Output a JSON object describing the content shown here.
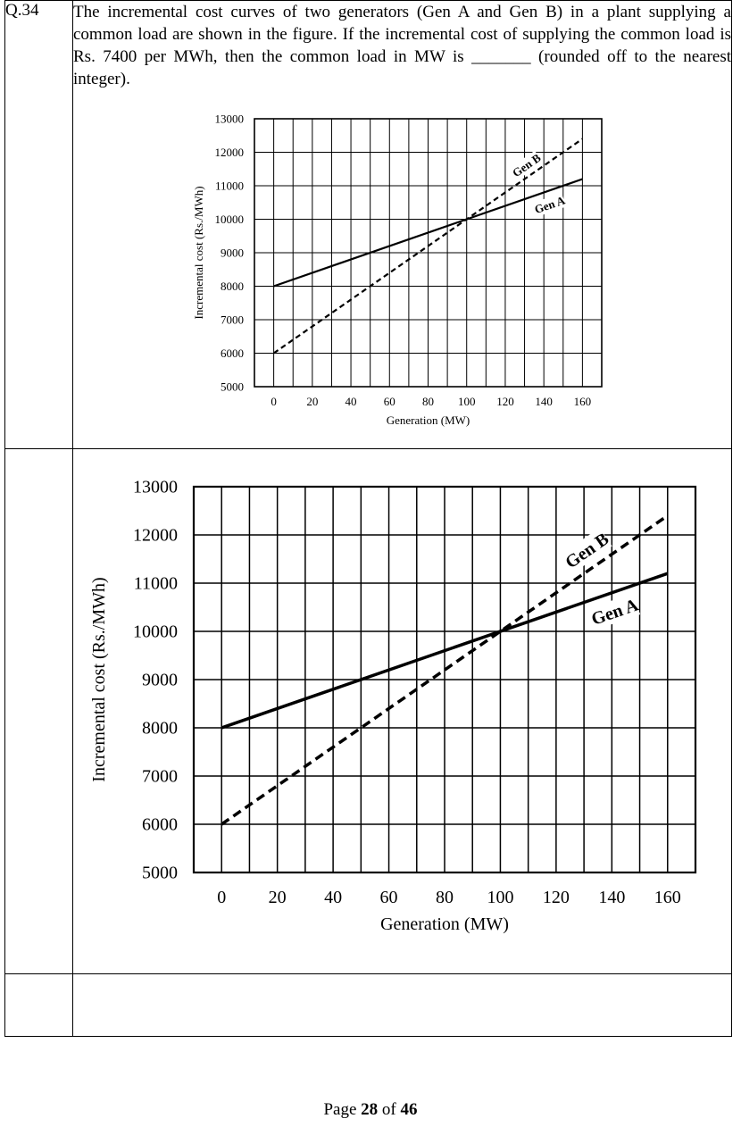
{
  "question": {
    "number": "Q.34",
    "text": "The incremental cost curves of two generators (Gen A and Gen B) in a plant supplying a common load are shown in the figure. If the incremental cost of supplying the common load is Rs. 7400 per MWh, then the common load in MW is _______ (rounded off to the nearest integer)."
  },
  "chart_data": [
    {
      "type": "line",
      "xlabel": "Generation (MW)",
      "ylabel": "Incremental cost (Rs./MWh)",
      "x_ticks": [
        "0",
        "20",
        "40",
        "60",
        "80",
        "100",
        "120",
        "140",
        "160"
      ],
      "y_ticks": [
        "5000",
        "6000",
        "7000",
        "8000",
        "9000",
        "10000",
        "11000",
        "12000",
        "13000"
      ],
      "xlim": [
        -10,
        170
      ],
      "ylim": [
        5000,
        13000
      ],
      "x_grid_step": 10,
      "y_grid_step": 1000,
      "grid": true,
      "series": [
        {
          "name": "Gen A",
          "style": "solid",
          "x": [
            0,
            160
          ],
          "y": [
            8000,
            11200
          ]
        },
        {
          "name": "Gen B",
          "style": "dashed",
          "x": [
            0,
            160
          ],
          "y": [
            6000,
            12400
          ]
        }
      ]
    },
    {
      "type": "line",
      "xlabel": "Generation (MW)",
      "ylabel": "Incremental cost (Rs./MWh)",
      "x_ticks": [
        "0",
        "20",
        "40",
        "60",
        "80",
        "100",
        "120",
        "140",
        "160"
      ],
      "y_ticks": [
        "5000",
        "6000",
        "7000",
        "8000",
        "9000",
        "10000",
        "11000",
        "12000",
        "13000"
      ],
      "xlim": [
        -10,
        170
      ],
      "ylim": [
        5000,
        13000
      ],
      "x_grid_step": 10,
      "y_grid_step": 1000,
      "grid": true,
      "series": [
        {
          "name": "Gen A",
          "style": "solid",
          "x": [
            0,
            160
          ],
          "y": [
            8000,
            11200
          ]
        },
        {
          "name": "Gen B",
          "style": "dashed",
          "x": [
            0,
            160
          ],
          "y": [
            6000,
            12400
          ]
        }
      ]
    }
  ],
  "footer": {
    "prefix": "Page",
    "page": "28",
    "middle": "of",
    "total": "46"
  }
}
